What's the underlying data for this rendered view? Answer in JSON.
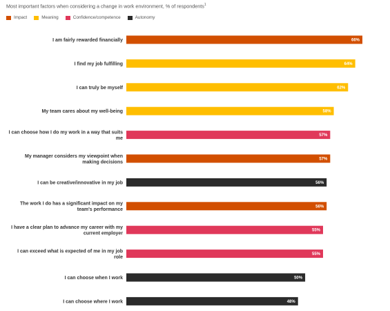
{
  "chart_data": {
    "type": "bar",
    "orientation": "horizontal",
    "title": "Most important factors when considering a change in work environment, % of respondents",
    "title_footnote": "1",
    "legend": [
      {
        "name": "Impact",
        "color": "#d24f00"
      },
      {
        "name": "Meaning",
        "color": "#ffbe00"
      },
      {
        "name": "Confidence/competence",
        "color": "#e0385a"
      },
      {
        "name": "Autonomy",
        "color": "#2b2b2b"
      }
    ],
    "categories": [
      [
        "I am fairly rewarded financially"
      ],
      [
        "I find my job fulfilling"
      ],
      [
        "I can truly be myself"
      ],
      [
        "My team cares about my well-being"
      ],
      [
        "I can choose how I do my work in a way that suits",
        "me"
      ],
      [
        "My manager considers my viewpoint when",
        "making decisions"
      ],
      [
        "I can be creative/innovative in my job"
      ],
      [
        "The work I do has a significant impact on my",
        "team's performance"
      ],
      [
        "I have a clear plan to advance my career with my",
        "current employer"
      ],
      [
        "I can exceed what is expected of me in my job",
        "role"
      ],
      [
        "I can choose when I work"
      ],
      [
        "I can choose where I work"
      ]
    ],
    "values": [
      66,
      64,
      62,
      58,
      57,
      57,
      56,
      56,
      55,
      55,
      50,
      48
    ],
    "value_labels": [
      "66%",
      "64%",
      "62%",
      "58%",
      "57%",
      "57%",
      "56%",
      "56%",
      "55%",
      "55%",
      "50%",
      "48%"
    ],
    "groups": [
      "Impact",
      "Meaning",
      "Meaning",
      "Meaning",
      "Confidence/competence",
      "Impact",
      "Autonomy",
      "Impact",
      "Confidence/competence",
      "Confidence/competence",
      "Autonomy",
      "Autonomy"
    ]
  }
}
